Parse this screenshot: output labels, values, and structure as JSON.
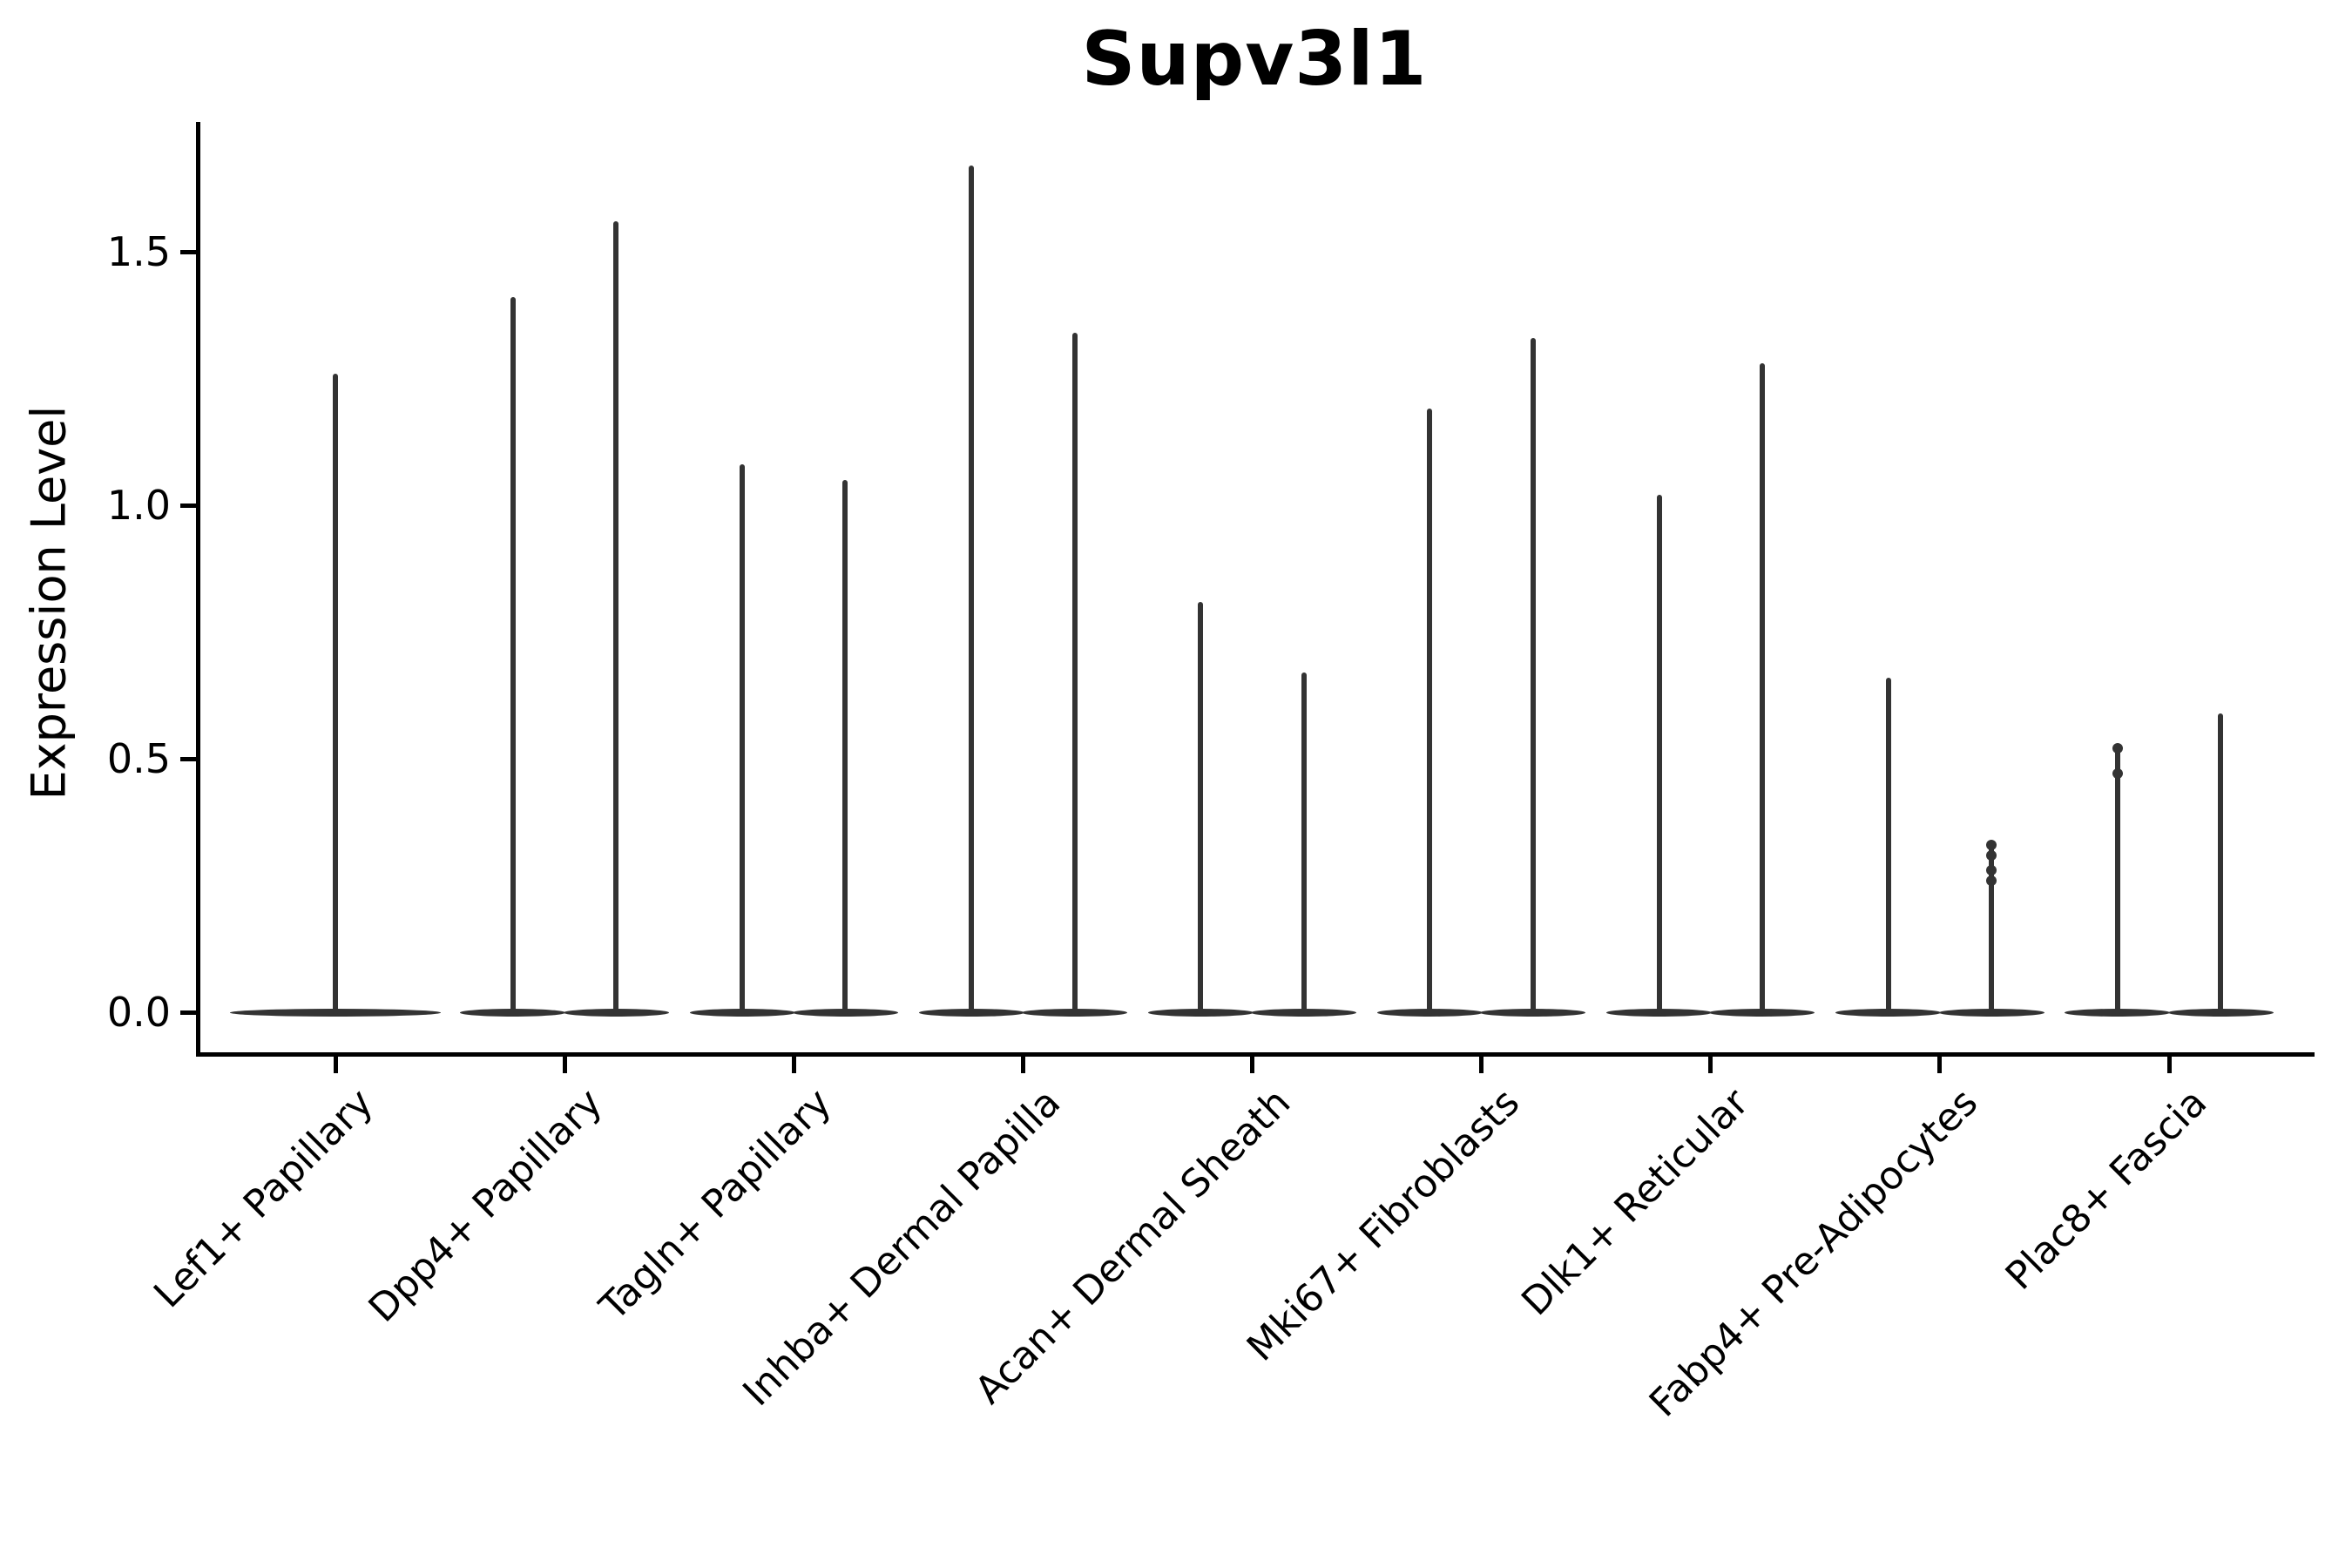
{
  "chart_data": {
    "type": "violin",
    "title": "Supv3l1",
    "ylabel": "Expression Level",
    "xlabel": "",
    "ytick_labels": [
      "0.0",
      "0.5",
      "1.0",
      "1.5"
    ],
    "ytick_values": [
      0.0,
      0.5,
      1.0,
      1.5
    ],
    "ylim": [
      -0.08,
      1.76
    ],
    "grid": false,
    "legend": "none",
    "colors": {
      "violin": "#333333",
      "axis": "#000000",
      "text": "#000000",
      "background": "#ffffff"
    },
    "categories": [
      "Lef1+ Papillary",
      "Dpp4+ Papillary",
      "Tagln+ Papillary",
      "Inhba+ Dermal Papilla",
      "Acan+ Dermal Sheath",
      "Mki67+ Fibroblasts",
      "Dlk1+ Reticular",
      "Fabp4+ Pre-Adipocytes",
      "Plac8+ Fascia"
    ],
    "groups": [
      {
        "category": "Lef1+ Papillary",
        "violins": [
          {
            "max": 1.26,
            "min": 0.0,
            "offset": 0.0,
            "width": 0.92
          }
        ]
      },
      {
        "category": "Dpp4+ Papillary",
        "violins": [
          {
            "max": 1.41,
            "min": 0.0,
            "offset": -0.225,
            "width": 0.46
          },
          {
            "max": 1.56,
            "min": 0.0,
            "offset": 0.225,
            "width": 0.46
          }
        ]
      },
      {
        "category": "Tagln+ Papillary",
        "violins": [
          {
            "max": 1.08,
            "min": 0.0,
            "offset": -0.225,
            "width": 0.46
          },
          {
            "max": 1.05,
            "min": 0.0,
            "offset": 0.225,
            "width": 0.46
          }
        ]
      },
      {
        "category": "Inhba+ Dermal Papilla",
        "violins": [
          {
            "max": 1.67,
            "min": 0.0,
            "offset": -0.225,
            "width": 0.46
          },
          {
            "max": 1.34,
            "min": 0.0,
            "offset": 0.225,
            "width": 0.46
          }
        ]
      },
      {
        "category": "Acan+ Dermal Sheath",
        "violins": [
          {
            "max": 0.81,
            "min": 0.0,
            "offset": -0.225,
            "width": 0.46
          },
          {
            "max": 0.67,
            "min": 0.0,
            "offset": 0.225,
            "width": 0.46
          }
        ]
      },
      {
        "category": "Mki67+ Fibroblasts",
        "violins": [
          {
            "max": 1.19,
            "min": 0.0,
            "offset": -0.225,
            "width": 0.46
          },
          {
            "max": 1.33,
            "min": 0.0,
            "offset": 0.225,
            "width": 0.46
          }
        ]
      },
      {
        "category": "Dlk1+ Reticular",
        "violins": [
          {
            "max": 1.02,
            "min": 0.0,
            "offset": -0.225,
            "width": 0.46
          },
          {
            "max": 1.28,
            "min": 0.0,
            "offset": 0.225,
            "width": 0.46
          }
        ]
      },
      {
        "category": "Fabp4+ Pre-Adipocytes",
        "violins": [
          {
            "max": 0.66,
            "min": 0.0,
            "offset": -0.225,
            "width": 0.46
          },
          {
            "max": 0.33,
            "min": 0.0,
            "offset": 0.225,
            "width": 0.46,
            "style": "dotted",
            "dots": [
              0.33,
              0.31,
              0.28,
              0.26
            ]
          }
        ]
      },
      {
        "category": "Plac8+ Fascia",
        "violins": [
          {
            "max": 0.52,
            "min": 0.0,
            "offset": -0.225,
            "width": 0.46,
            "dots": [
              0.52,
              0.47
            ]
          },
          {
            "max": 0.59,
            "min": 0.0,
            "offset": 0.225,
            "width": 0.46
          }
        ]
      }
    ]
  }
}
